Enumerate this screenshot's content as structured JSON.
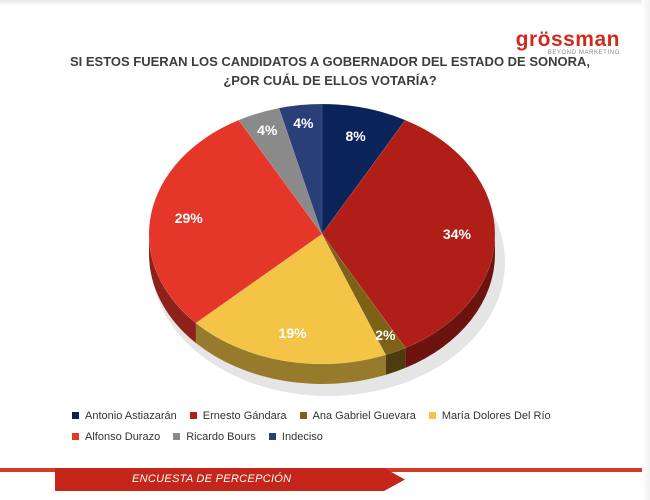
{
  "logo": {
    "word": "grössman",
    "sub": "BEYOND MARKETING"
  },
  "title_line1": "SI ESTOS FUERAN LOS CANDIDATOS A GOBERNADOR DEL ESTADO DE SONORA,",
  "title_line2": "¿POR CUÁL DE ELLOS VOTARÍA?",
  "footer": "ENCUESTA DE PERCEPCIÓN",
  "colors": {
    "brand": "#d22a1f",
    "footer": "#c4261b"
  },
  "chart_data": {
    "type": "pie",
    "title": "SI ESTOS FUERAN LOS CANDIDATOS A GOBERNADOR DEL ESTADO DE SONORA, ¿POR CUÁL DE ELLOS VOTARÍA?",
    "legend_position": "bottom",
    "slices": [
      {
        "label": "Antonio Astiazarán",
        "value": 8,
        "display": "8%",
        "color": "#0a2459"
      },
      {
        "label": "Ernesto Gándara",
        "value": 34,
        "display": "34%",
        "color": "#b01e18"
      },
      {
        "label": "Ana Gabriel Guevara",
        "value": 2,
        "display": "2%",
        "color": "#7d6117"
      },
      {
        "label": "María Dolores Del Río",
        "value": 19,
        "display": "19%",
        "color": "#f3c445"
      },
      {
        "label": "Alfonso Durazo",
        "value": 29,
        "display": "29%",
        "color": "#e5362a"
      },
      {
        "label": "Ricardo Bours",
        "value": 4,
        "display": "4%",
        "color": "#8a8a8a"
      },
      {
        "label": "Indeciso",
        "value": 4,
        "display": "4%",
        "color": "#2a3f78"
      }
    ]
  }
}
